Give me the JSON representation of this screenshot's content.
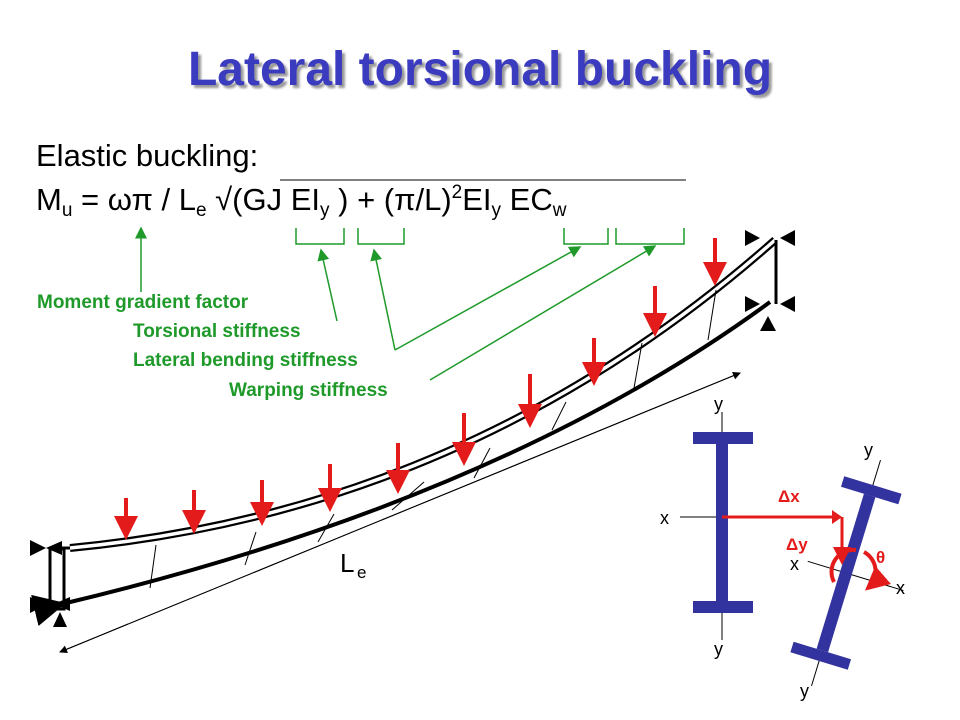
{
  "title": "Lateral torsional buckling",
  "subtitle": "Elastic buckling:",
  "formula": {
    "Mu_M": "M",
    "Mu_sub": "u",
    "eq1": " = ωπ / L",
    "Le_sub": "e",
    "root": " √(GJ EI",
    "Iy_sub1": "y",
    "mid": " ) + (π/L)",
    "sq": "2",
    "EI": "EI",
    "Iy_sub2": "y",
    "EC": " EC",
    "w_sub": "w"
  },
  "labels": {
    "moment_gradient": "Moment gradient factor",
    "torsional": "Torsional stiffness",
    "lateral": "Lateral bending stiffness",
    "warping": "Warping stiffness"
  },
  "beam": {
    "length_L": "L",
    "length_sub": "e"
  },
  "section": {
    "y_top": "y",
    "y_bottom": "y",
    "x_left": "x",
    "y_top_r": "y",
    "y_bottom_r": "y",
    "x_left_r": "x",
    "x_right_r": "x",
    "dx": "Δx",
    "dy": "Δy",
    "theta": "θ"
  },
  "colors": {
    "title": "#3b3bbf",
    "label_green": "#1f9a2a",
    "load_red": "#e31b1b",
    "section_blue": "#3333a0"
  }
}
